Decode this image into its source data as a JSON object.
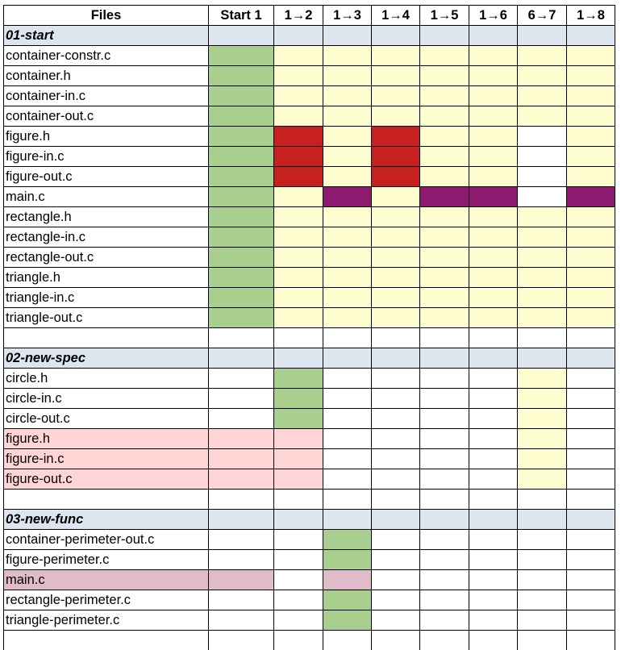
{
  "columns": [
    "Files",
    "Start 1",
    "1→2",
    "1→3",
    "1→4",
    "1→5",
    "1→6",
    "6→7",
    "1→8"
  ],
  "colors": {
    "g": "#a9cf8e",
    "y": "#fdfdd0",
    "r": "#c7211f",
    "p": "#8c1a6e",
    "pk": "#ffd5d5",
    "mv": "#dfbcc8",
    "w": "#ffffff",
    "section": "#dde5ef"
  },
  "rows": [
    {
      "type": "section",
      "label": "01-start"
    },
    {
      "type": "file",
      "label": "container-constr.c",
      "fill": "w",
      "cells": [
        "g",
        "y",
        "y",
        "y",
        "y",
        "y",
        "y",
        "y"
      ]
    },
    {
      "type": "file",
      "label": "container.h",
      "fill": "w",
      "cells": [
        "g",
        "y",
        "y",
        "y",
        "y",
        "y",
        "y",
        "y"
      ]
    },
    {
      "type": "file",
      "label": "container-in.c",
      "fill": "w",
      "cells": [
        "g",
        "y",
        "y",
        "y",
        "y",
        "y",
        "y",
        "y"
      ]
    },
    {
      "type": "file",
      "label": "container-out.c",
      "fill": "w",
      "cells": [
        "g",
        "y",
        "y",
        "y",
        "y",
        "y",
        "y",
        "y"
      ]
    },
    {
      "type": "file",
      "label": "figure.h",
      "fill": "w",
      "cells": [
        "g",
        "r",
        "y",
        "r",
        "y",
        "y",
        "w",
        "y"
      ]
    },
    {
      "type": "file",
      "label": "figure-in.c",
      "fill": "w",
      "cells": [
        "g",
        "r",
        "y",
        "r",
        "y",
        "y",
        "w",
        "y"
      ]
    },
    {
      "type": "file",
      "label": "figure-out.c",
      "fill": "w",
      "cells": [
        "g",
        "r",
        "y",
        "r",
        "y",
        "y",
        "w",
        "y"
      ]
    },
    {
      "type": "file",
      "label": "main.c",
      "fill": "w",
      "cells": [
        "g",
        "y",
        "p",
        "y",
        "p",
        "p",
        "w",
        "p"
      ]
    },
    {
      "type": "file",
      "label": "rectangle.h",
      "fill": "w",
      "cells": [
        "g",
        "y",
        "y",
        "y",
        "y",
        "y",
        "y",
        "y"
      ]
    },
    {
      "type": "file",
      "label": "rectangle-in.c",
      "fill": "w",
      "cells": [
        "g",
        "y",
        "y",
        "y",
        "y",
        "y",
        "y",
        "y"
      ]
    },
    {
      "type": "file",
      "label": "rectangle-out.c",
      "fill": "w",
      "cells": [
        "g",
        "y",
        "y",
        "y",
        "y",
        "y",
        "y",
        "y"
      ]
    },
    {
      "type": "file",
      "label": "triangle.h",
      "fill": "w",
      "cells": [
        "g",
        "y",
        "y",
        "y",
        "y",
        "y",
        "y",
        "y"
      ]
    },
    {
      "type": "file",
      "label": "triangle-in.c",
      "fill": "w",
      "cells": [
        "g",
        "y",
        "y",
        "y",
        "y",
        "y",
        "y",
        "y"
      ]
    },
    {
      "type": "file",
      "label": "triangle-out.c",
      "fill": "w",
      "cells": [
        "g",
        "y",
        "y",
        "y",
        "y",
        "y",
        "y",
        "y"
      ]
    },
    {
      "type": "blank"
    },
    {
      "type": "section",
      "label": "02-new-spec"
    },
    {
      "type": "file",
      "label": "circle.h",
      "fill": "w",
      "cells": [
        "w",
        "g",
        "w",
        "w",
        "w",
        "w",
        "y",
        "w"
      ]
    },
    {
      "type": "file",
      "label": "circle-in.c",
      "fill": "w",
      "cells": [
        "w",
        "g",
        "w",
        "w",
        "w",
        "w",
        "y",
        "w"
      ]
    },
    {
      "type": "file",
      "label": "circle-out.c",
      "fill": "w",
      "cells": [
        "w",
        "g",
        "w",
        "w",
        "w",
        "w",
        "y",
        "w"
      ]
    },
    {
      "type": "file",
      "label": "figure.h",
      "fill": "pk",
      "cells": [
        "pk",
        "pk",
        "w",
        "w",
        "w",
        "w",
        "y",
        "w"
      ]
    },
    {
      "type": "file",
      "label": "figure-in.c",
      "fill": "pk",
      "cells": [
        "pk",
        "pk",
        "w",
        "w",
        "w",
        "w",
        "y",
        "w"
      ]
    },
    {
      "type": "file",
      "label": "figure-out.c",
      "fill": "pk",
      "cells": [
        "pk",
        "pk",
        "w",
        "w",
        "w",
        "w",
        "y",
        "w"
      ]
    },
    {
      "type": "blank"
    },
    {
      "type": "section",
      "label": "03-new-func"
    },
    {
      "type": "file",
      "label": "container-perimeter-out.c",
      "fill": "w",
      "cells": [
        "w",
        "w",
        "g",
        "w",
        "w",
        "w",
        "w",
        "w"
      ]
    },
    {
      "type": "file",
      "label": "figure-perimeter.c",
      "fill": "w",
      "cells": [
        "w",
        "w",
        "g",
        "w",
        "w",
        "w",
        "w",
        "w"
      ]
    },
    {
      "type": "file",
      "label": "main.c",
      "fill": "mv",
      "cells": [
        "mv",
        "w",
        "mv",
        "w",
        "w",
        "w",
        "w",
        "w"
      ]
    },
    {
      "type": "file",
      "label": "rectangle-perimeter.c",
      "fill": "w",
      "cells": [
        "w",
        "w",
        "g",
        "w",
        "w",
        "w",
        "w",
        "w"
      ]
    },
    {
      "type": "file",
      "label": "triangle-perimeter.c",
      "fill": "w",
      "cells": [
        "w",
        "w",
        "g",
        "w",
        "w",
        "w",
        "w",
        "w"
      ]
    },
    {
      "type": "open"
    }
  ]
}
